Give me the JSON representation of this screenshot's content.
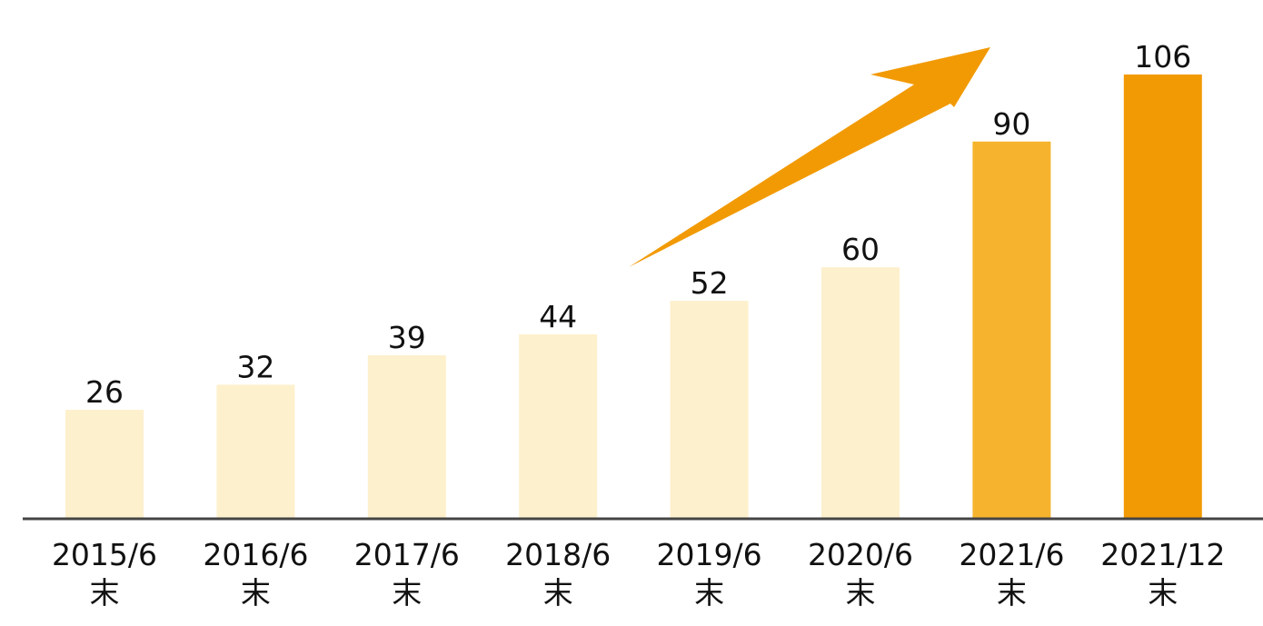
{
  "chart_data": {
    "type": "bar",
    "categories": [
      [
        "2015/6",
        "末"
      ],
      [
        "2016/6",
        "末"
      ],
      [
        "2017/6",
        "末"
      ],
      [
        "2018/6",
        "末"
      ],
      [
        "2019/6",
        "末"
      ],
      [
        "2020/6",
        "末"
      ],
      [
        "2021/6",
        "末"
      ],
      [
        "2021/12",
        "末"
      ]
    ],
    "values": [
      26,
      32,
      39,
      44,
      52,
      60,
      90,
      106
    ],
    "data_labels": [
      "26",
      "32",
      "39",
      "44",
      "52",
      "60",
      "90",
      "106"
    ],
    "bar_colors": [
      "#fdf0cc",
      "#fdf0cc",
      "#fdf0cc",
      "#fdf0cc",
      "#fdf0cc",
      "#fdf0cc",
      "#f6b42e",
      "#f29a04"
    ],
    "ylim": [
      0,
      106
    ],
    "grid": false,
    "legend": "none",
    "annotations": [
      {
        "type": "trend-arrow",
        "color": "#f29a04"
      }
    ],
    "axis_color": "#444444"
  }
}
